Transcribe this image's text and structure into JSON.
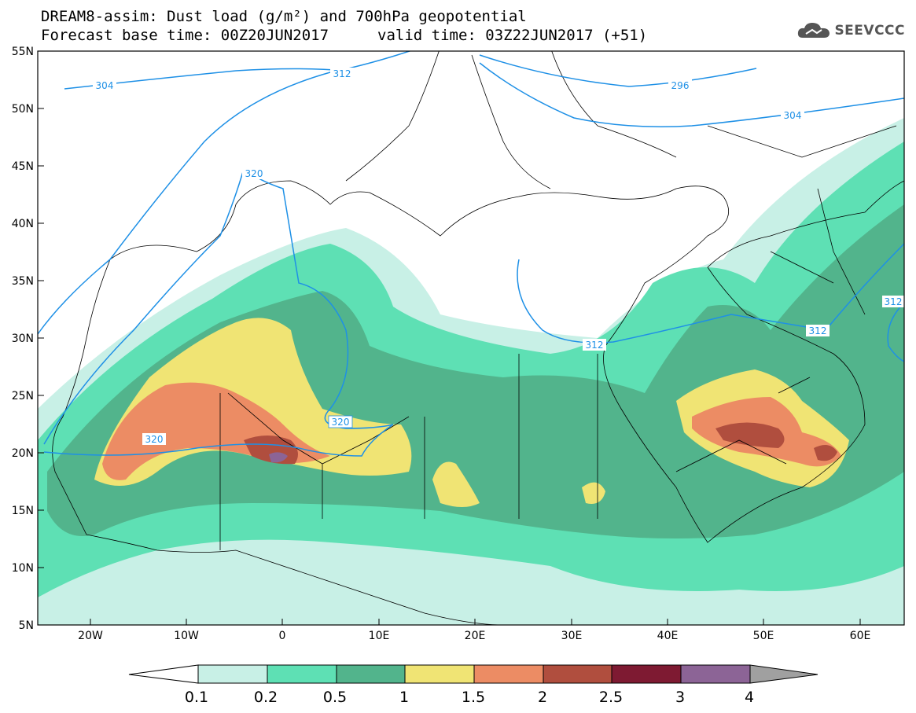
{
  "header": {
    "line1": "DREAM8-assim: Dust load (g/m²) and 700hPa geopotential",
    "line2_left": "Forecast base time: 00Z20JUN2017",
    "line2_right": "valid time: 03Z22JUN2017 (+51)"
  },
  "logo": {
    "text": "SEEVCCC",
    "icon": "cloud-logo-icon"
  },
  "map": {
    "lon_range": [
      -25,
      65
    ],
    "lat_range": [
      5,
      55
    ],
    "lat_ticks": [
      "55N",
      "50N",
      "45N",
      "40N",
      "35N",
      "30N",
      "25N",
      "20N",
      "15N",
      "10N",
      "5N"
    ],
    "lon_ticks": [
      "20W",
      "10W",
      "0",
      "10E",
      "20E",
      "30E",
      "40E",
      "50E",
      "60E"
    ],
    "contour_labels": [
      "304",
      "312",
      "296",
      "304",
      "320",
      "320",
      "320",
      "312",
      "312",
      "312"
    ]
  },
  "colorbar": {
    "labels": [
      "0.1",
      "0.2",
      "0.5",
      "1",
      "1.5",
      "2",
      "2.5",
      "3",
      "4"
    ],
    "colors": [
      "#c8f0e6",
      "#5ee0b4",
      "#52b48c",
      "#f0e474",
      "#ec8c64",
      "#b04e3e",
      "#7e1a32",
      "#8c6496",
      "#a0a0a0"
    ],
    "under_color": "#ffffff",
    "over_color": "#a0a0a0"
  },
  "style": {
    "contour_color": "#1e90e6",
    "border_color": "#000000"
  }
}
